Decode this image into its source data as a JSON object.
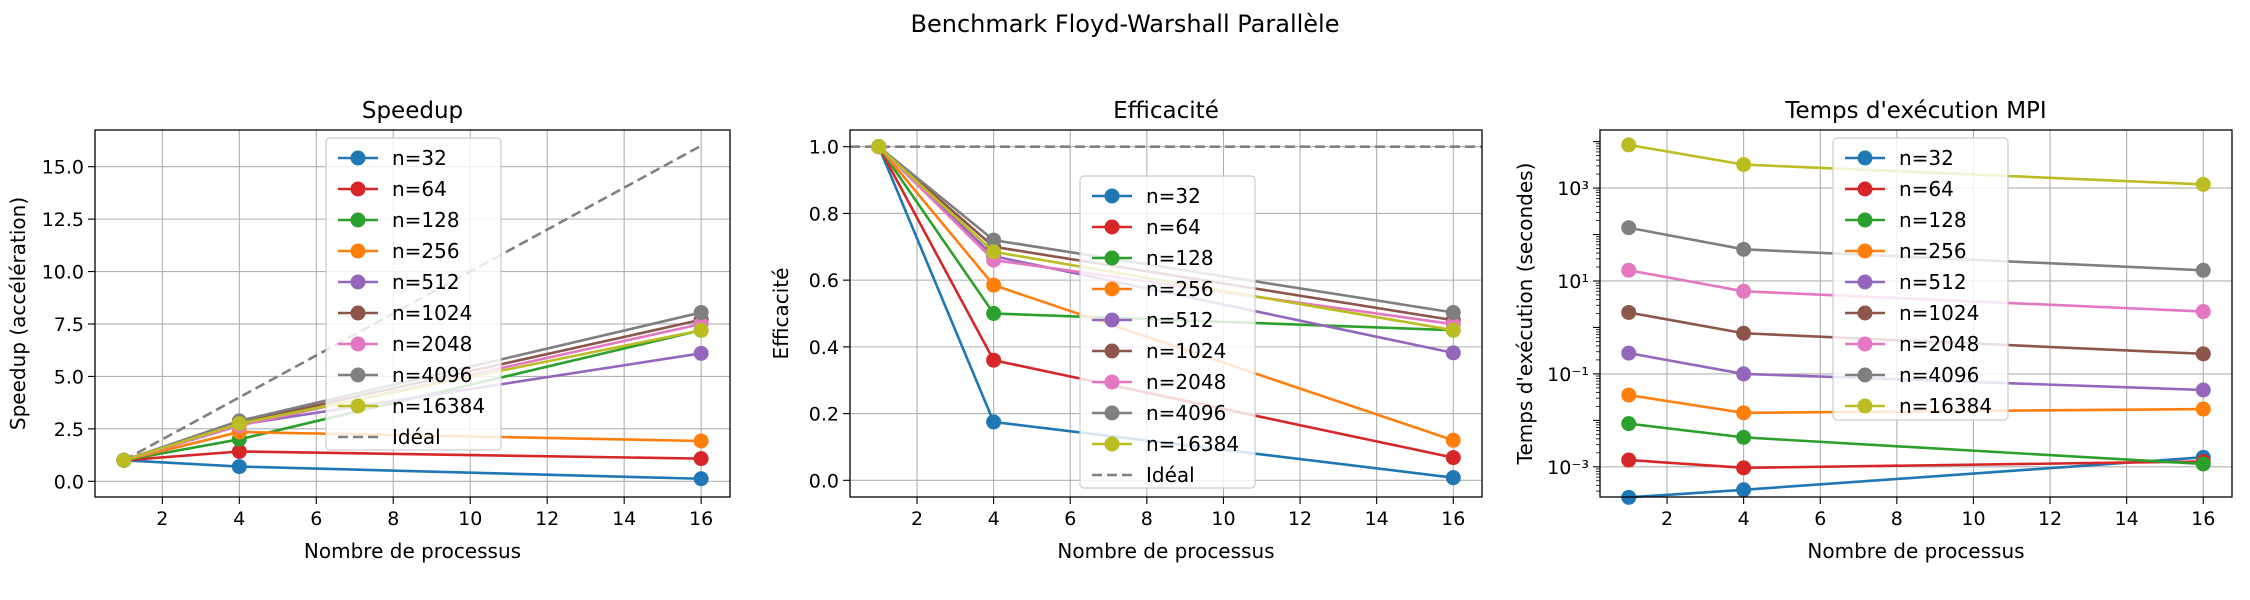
{
  "figure": {
    "suptitle": "Benchmark Floyd-Warshall Parallèle"
  },
  "series_colors": {
    "n=32": "#1f77b4",
    "n=64": "#d62728",
    "n=128": "#2ca02c",
    "n=256": "#ff7f0e",
    "n=512": "#9467bd",
    "n=1024": "#8c564b",
    "n=2048": "#e377c2",
    "n=4096": "#7f7f7f",
    "n=16384": "#bcbd22",
    "Idéal": "#808080"
  },
  "chart_data": [
    {
      "type": "line",
      "title": "Speedup",
      "xlabel": "Nombre de processus",
      "ylabel": "Speedup (accélération)",
      "yscale": "linear",
      "xlim": [
        0.25,
        16.75
      ],
      "ylim": [
        -0.75,
        16.75
      ],
      "xticks": [
        2,
        4,
        6,
        8,
        10,
        12,
        14,
        16
      ],
      "xtick_labels": [
        "2",
        "4",
        "6",
        "8",
        "10",
        "12",
        "14",
        "16"
      ],
      "yticks": [
        0,
        2.5,
        5,
        7.5,
        10,
        12.5,
        15
      ],
      "ytick_labels": [
        "0.0",
        "2.5",
        "5.0",
        "7.5",
        "10.0",
        "12.5",
        "15.0"
      ],
      "grid": true,
      "legend_position": "upper-center",
      "x": [
        1,
        4,
        16
      ],
      "series": [
        {
          "name": "n=32",
          "values": [
            1.0,
            0.7,
            0.12
          ]
        },
        {
          "name": "n=64",
          "values": [
            1.0,
            1.42,
            1.08
          ]
        },
        {
          "name": "n=128",
          "values": [
            1.0,
            2.0,
            7.2
          ]
        },
        {
          "name": "n=256",
          "values": [
            1.0,
            2.35,
            1.92
          ]
        },
        {
          "name": "n=512",
          "values": [
            1.0,
            2.7,
            6.1
          ]
        },
        {
          "name": "n=1024",
          "values": [
            1.0,
            2.8,
            7.7
          ]
        },
        {
          "name": "n=2048",
          "values": [
            1.0,
            2.65,
            7.5
          ]
        },
        {
          "name": "n=4096",
          "values": [
            1.0,
            2.88,
            8.05
          ]
        },
        {
          "name": "n=16384",
          "values": [
            1.0,
            2.75,
            7.2
          ]
        }
      ],
      "ideal": {
        "name": "Idéal",
        "x": [
          1,
          16
        ],
        "values": [
          1,
          16
        ]
      }
    },
    {
      "type": "line",
      "title": "Efficacité",
      "xlabel": "Nombre de processus",
      "ylabel": "Efficacité",
      "yscale": "linear",
      "xlim": [
        0.25,
        16.75
      ],
      "ylim": [
        -0.05,
        1.05
      ],
      "xticks": [
        2,
        4,
        6,
        8,
        10,
        12,
        14,
        16
      ],
      "xtick_labels": [
        "2",
        "4",
        "6",
        "8",
        "10",
        "12",
        "14",
        "16"
      ],
      "yticks": [
        0,
        0.2,
        0.4,
        0.6,
        0.8,
        1.0
      ],
      "ytick_labels": [
        "0.0",
        "0.2",
        "0.4",
        "0.6",
        "0.8",
        "1.0"
      ],
      "grid": true,
      "legend_position": "lower-center",
      "x": [
        1,
        4,
        16
      ],
      "series": [
        {
          "name": "n=32",
          "values": [
            1.0,
            0.175,
            0.008
          ]
        },
        {
          "name": "n=64",
          "values": [
            1.0,
            0.36,
            0.068
          ]
        },
        {
          "name": "n=128",
          "values": [
            1.0,
            0.5,
            0.45
          ]
        },
        {
          "name": "n=256",
          "values": [
            1.0,
            0.585,
            0.12
          ]
        },
        {
          "name": "n=512",
          "values": [
            1.0,
            0.672,
            0.382
          ]
        },
        {
          "name": "n=1024",
          "values": [
            1.0,
            0.7,
            0.48
          ]
        },
        {
          "name": "n=2048",
          "values": [
            1.0,
            0.66,
            0.468
          ]
        },
        {
          "name": "n=4096",
          "values": [
            1.0,
            0.72,
            0.503
          ]
        },
        {
          "name": "n=16384",
          "values": [
            1.0,
            0.685,
            0.45
          ]
        }
      ],
      "ideal": {
        "name": "Idéal",
        "x": [
          0.25,
          16.75
        ],
        "values": [
          1.0,
          1.0
        ]
      }
    },
    {
      "type": "line",
      "title": "Temps d'exécution MPI",
      "xlabel": "Nombre de processus",
      "ylabel": "Temps d'exécution (secondes)",
      "yscale": "log",
      "xlim": [
        0.25,
        16.75
      ],
      "ylim_log10": [
        -3.65,
        4.25
      ],
      "xticks": [
        2,
        4,
        6,
        8,
        10,
        12,
        14,
        16
      ],
      "xtick_labels": [
        "2",
        "4",
        "6",
        "8",
        "10",
        "12",
        "14",
        "16"
      ],
      "yticks_log10": [
        -3,
        -1,
        1,
        3
      ],
      "ytick_labels": [
        "10⁻³",
        "10⁻¹",
        "10¹",
        "10³"
      ],
      "grid": true,
      "legend_position": "upper-center",
      "x": [
        1,
        4,
        16
      ],
      "series": [
        {
          "name": "n=32",
          "values": [
            0.00022,
            0.00032,
            0.0016
          ]
        },
        {
          "name": "n=64",
          "values": [
            0.0014,
            0.00095,
            0.0013
          ]
        },
        {
          "name": "n=128",
          "values": [
            0.0085,
            0.0043,
            0.00115
          ]
        },
        {
          "name": "n=256",
          "values": [
            0.035,
            0.0145,
            0.0175
          ]
        },
        {
          "name": "n=512",
          "values": [
            0.28,
            0.1,
            0.045
          ]
        },
        {
          "name": "n=1024",
          "values": [
            2.1,
            0.75,
            0.27
          ]
        },
        {
          "name": "n=2048",
          "values": [
            17,
            6.0,
            2.2
          ]
        },
        {
          "name": "n=4096",
          "values": [
            140,
            48,
            17
          ]
        },
        {
          "name": "n=16384",
          "values": [
            8500,
            3200,
            1200
          ]
        }
      ]
    }
  ]
}
